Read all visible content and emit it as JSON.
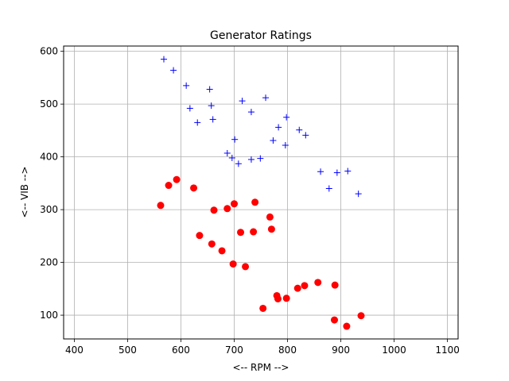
{
  "chart_data": {
    "type": "scatter",
    "title": "Generator Ratings",
    "xlabel": "<-- RPM -->",
    "ylabel": "<-- VIB -->",
    "xlim": [
      380,
      1120
    ],
    "ylim": [
      55,
      610
    ],
    "xticks": [
      400,
      500,
      600,
      700,
      800,
      900,
      1000,
      1100
    ],
    "yticks": [
      100,
      200,
      300,
      400,
      500,
      600
    ],
    "grid": true,
    "series": [
      {
        "marker": "plus",
        "color": "#0000ff",
        "points": [
          [
            568,
            585
          ],
          [
            586,
            564
          ],
          [
            610,
            535
          ],
          [
            654,
            528
          ],
          [
            617,
            492
          ],
          [
            657,
            497
          ],
          [
            631,
            465
          ],
          [
            660,
            471
          ],
          [
            715,
            506
          ],
          [
            759,
            512
          ],
          [
            732,
            485
          ],
          [
            798,
            475
          ],
          [
            783,
            456
          ],
          [
            822,
            451
          ],
          [
            834,
            441
          ],
          [
            796,
            422
          ],
          [
            773,
            431
          ],
          [
            701,
            433
          ],
          [
            687,
            407
          ],
          [
            696,
            398
          ],
          [
            708,
            387
          ],
          [
            732,
            395
          ],
          [
            749,
            397
          ],
          [
            862,
            372
          ],
          [
            893,
            370
          ],
          [
            913,
            373
          ],
          [
            878,
            340
          ],
          [
            933,
            330
          ]
        ]
      },
      {
        "marker": "circle",
        "color": "#ff0000",
        "points": [
          [
            562,
            308
          ],
          [
            577,
            346
          ],
          [
            592,
            357
          ],
          [
            624,
            341
          ],
          [
            662,
            299
          ],
          [
            687,
            302
          ],
          [
            700,
            311
          ],
          [
            739,
            314
          ],
          [
            767,
            286
          ],
          [
            770,
            263
          ],
          [
            635,
            251
          ],
          [
            658,
            235
          ],
          [
            677,
            222
          ],
          [
            712,
            257
          ],
          [
            736,
            258
          ],
          [
            698,
            197
          ],
          [
            721,
            192
          ],
          [
            780,
            137
          ],
          [
            782,
            131
          ],
          [
            798,
            132
          ],
          [
            819,
            151
          ],
          [
            832,
            156
          ],
          [
            857,
            162
          ],
          [
            889,
            157
          ],
          [
            754,
            113
          ],
          [
            888,
            91
          ],
          [
            911,
            79
          ],
          [
            938,
            99
          ]
        ]
      }
    ]
  }
}
